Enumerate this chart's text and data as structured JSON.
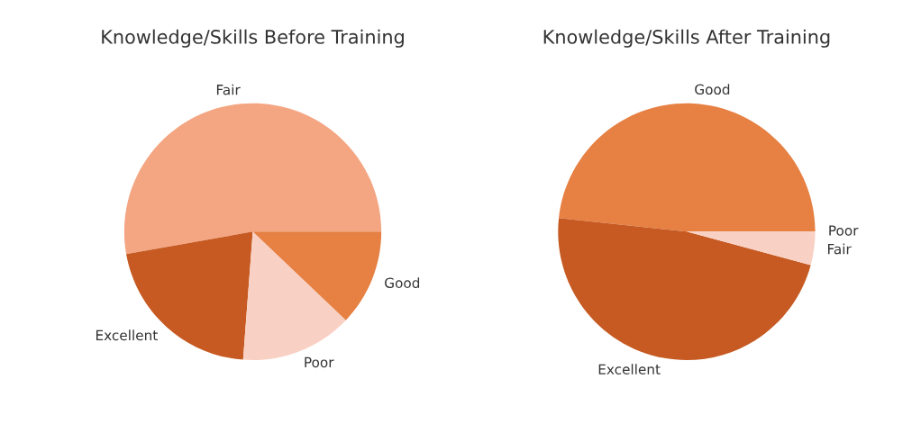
{
  "chart_data": [
    {
      "type": "pie",
      "title": "Knowledge/Skills Before Training",
      "categories": [
        "Fair",
        "Excellent",
        "Poor",
        "Good"
      ],
      "values": [
        52.8,
        21.0,
        14.1,
        12.1
      ],
      "colors": [
        "#f4a582",
        "#c65a22",
        "#f9d1c4",
        "#e68043"
      ]
    },
    {
      "type": "pie",
      "title": "Knowledge/Skills After Training",
      "categories": [
        "Good",
        "Excellent",
        "Fair",
        "Poor"
      ],
      "values": [
        48.3,
        47.5,
        4.2,
        0
      ],
      "colors": [
        "#e68043",
        "#c65a22",
        "#f9d1c4",
        "#f4a582"
      ]
    }
  ]
}
